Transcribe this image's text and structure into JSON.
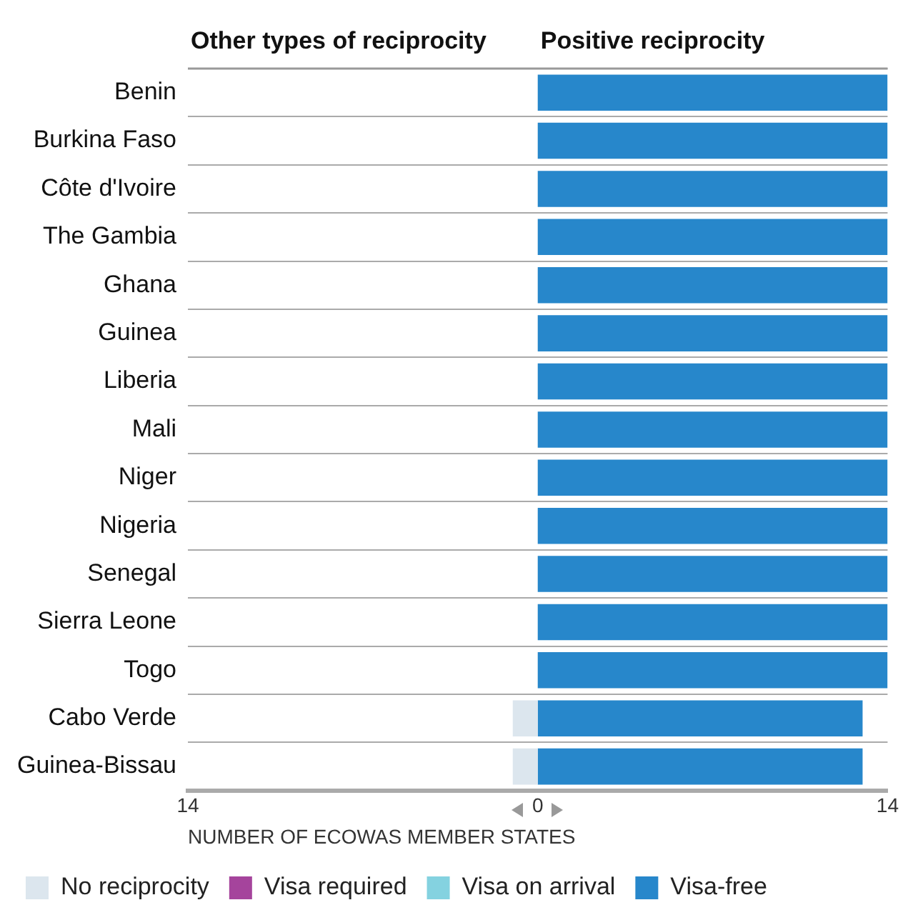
{
  "chart_data": {
    "type": "bar",
    "orientation": "horizontal",
    "stacked": true,
    "categories": [
      "Benin",
      "Burkina Faso",
      "Côte d'Ivoire",
      "The Gambia",
      "Ghana",
      "Guinea",
      "Liberia",
      "Mali",
      "Niger",
      "Nigeria",
      "Senegal",
      "Sierra Leone",
      "Togo",
      "Cabo Verde",
      "Guinea-Bissau"
    ],
    "series": [
      {
        "name": "No reciprocity",
        "color": "#dce6ee",
        "values": [
          null,
          null,
          null,
          null,
          null,
          null,
          null,
          null,
          null,
          null,
          null,
          null,
          null,
          -1,
          -1
        ]
      },
      {
        "name": "Visa required",
        "color": "#a5449c",
        "values": [
          null,
          null,
          null,
          null,
          null,
          null,
          null,
          null,
          null,
          null,
          null,
          null,
          null,
          null,
          null
        ]
      },
      {
        "name": "Visa on arrival",
        "color": "#84d2e0",
        "values": [
          null,
          null,
          null,
          null,
          null,
          null,
          null,
          null,
          null,
          null,
          null,
          null,
          null,
          null,
          null
        ]
      },
      {
        "name": "Visa-free",
        "color": "#2787cb",
        "values": [
          14,
          14,
          14,
          14,
          14,
          14,
          14,
          14,
          14,
          14,
          14,
          14,
          14,
          13,
          13
        ]
      }
    ],
    "xlim": [
      -14,
      14
    ],
    "xticks": [
      {
        "value": -14,
        "label": "14"
      },
      0,
      14
    ],
    "xlabel": "NUMBER OF ECOWAS MEMBER STATES",
    "annotations": [
      "Other types of reciprocity",
      "Positive reciprocity"
    ],
    "grid": "y",
    "legend": "bottom"
  }
}
